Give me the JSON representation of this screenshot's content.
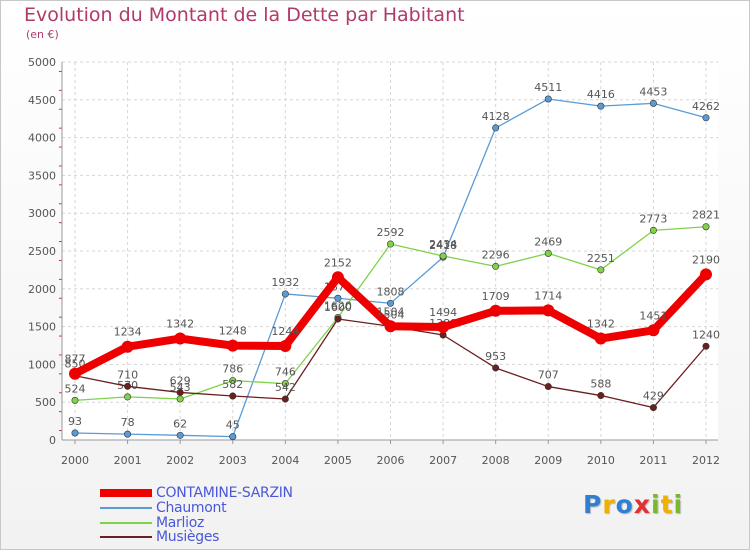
{
  "title": "Evolution du Montant de la Dette par Habitant",
  "subtitle": "(en €)",
  "chart_data": {
    "type": "line",
    "title": "Evolution du Montant de la Dette par Habitant",
    "ylabel": "(en €)",
    "xlabel": "",
    "ylim": [
      0,
      5000
    ],
    "yticks": [
      0,
      500,
      1000,
      1500,
      2000,
      2500,
      3000,
      3500,
      4000,
      4500,
      5000
    ],
    "categories": [
      "2000",
      "2001",
      "2002",
      "2003",
      "2004",
      "2005",
      "2006",
      "2007",
      "2008",
      "2009",
      "2010",
      "2011",
      "2012"
    ],
    "grid": true,
    "legend_position": "bottom-left",
    "series": [
      {
        "name": "Chaumont",
        "color": "#5b9bd5",
        "values": [
          93,
          78,
          62,
          45,
          1932,
          1875,
          1808,
          2418,
          4128,
          4511,
          4416,
          4453,
          4262
        ]
      },
      {
        "name": "Marlioz",
        "color": "#7fd24a",
        "values": [
          524,
          570,
          543,
          786,
          746,
          1620,
          2592,
          2434,
          2296,
          2469,
          2251,
          2773,
          2821
        ]
      },
      {
        "name": "Musièges",
        "color": "#6b1f1f",
        "values": [
          850,
          710,
          629,
          582,
          542,
          1600,
          1504,
          1389,
          953,
          707,
          588,
          429,
          1240
        ]
      },
      {
        "name": "CONTAMINE-SARZIN",
        "color": "#ee0000",
        "values": [
          877,
          1234,
          1342,
          1248,
          1244,
          2152,
          1504,
          1494,
          1709,
          1714,
          1342,
          1451,
          2190
        ]
      }
    ]
  },
  "legend": [
    {
      "name": "CONTAMINE-SARZIN",
      "color": "#ee0000"
    },
    {
      "name": "Chaumont",
      "color": "#5b9bd5"
    },
    {
      "name": "Marlioz",
      "color": "#7fd24a"
    },
    {
      "name": "Musièges",
      "color": "#6b1f1f"
    }
  ],
  "logo": {
    "text": "Proxiti",
    "letters": [
      {
        "ch": "P",
        "color": "#2f7fd3"
      },
      {
        "ch": "r",
        "color": "#f0b000"
      },
      {
        "ch": "o",
        "color": "#2f7fd3"
      },
      {
        "ch": "x",
        "color": "#e03030"
      },
      {
        "ch": "i",
        "color": "#79b829"
      },
      {
        "ch": "t",
        "color": "#f0b000"
      },
      {
        "ch": "i",
        "color": "#79b829"
      }
    ]
  }
}
